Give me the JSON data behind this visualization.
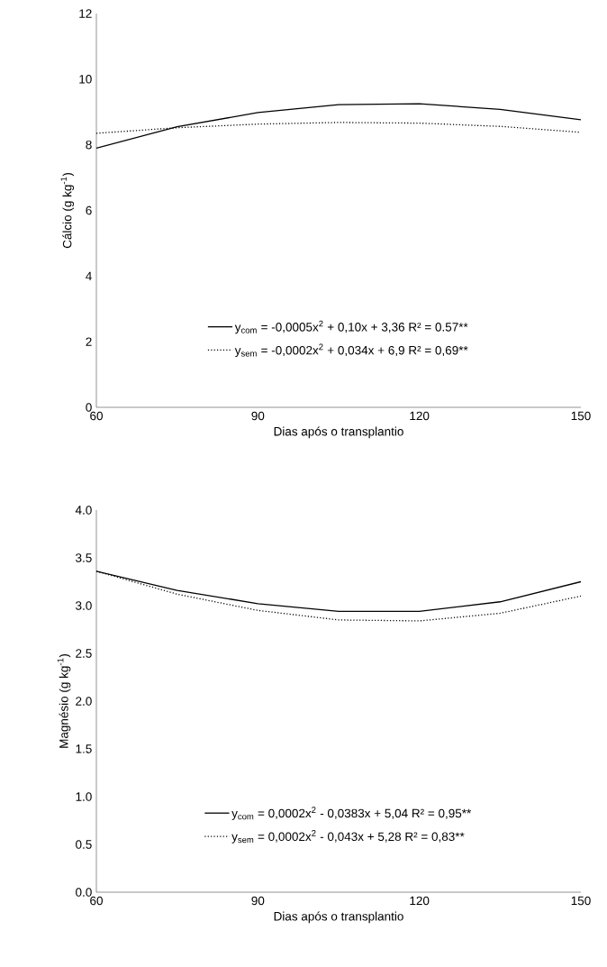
{
  "chart_data": [
    {
      "type": "line",
      "xlabel": "Dias após o transplantio",
      "ylabel": "Cálcio (g kg$^{-1}$)",
      "x": [
        60,
        75,
        90,
        105,
        120,
        135,
        150
      ],
      "xlim": [
        60,
        150
      ],
      "xticks": [
        60,
        90,
        120,
        150
      ],
      "ylim": [
        0,
        12
      ],
      "yticks": [
        0,
        2,
        4,
        6,
        8,
        10,
        12
      ],
      "grid": false,
      "legend": "bottom",
      "marker": "none",
      "series": [
        {
          "name": "y$_{com}$ = -0,0005x$^{2}$ + 0,10x + 3,36 R² = 0.57**",
          "color": "#000000",
          "line_style": "solid",
          "values": [
            7.9,
            8.55,
            8.98,
            9.22,
            9.25,
            9.08,
            8.76
          ]
        },
        {
          "name": "y$_{sem}$ = -0,0002x$^{2}$ + 0,034x + 6,9 R² = 0,69**",
          "color": "#000000",
          "line_style": "dotted",
          "values": [
            8.35,
            8.52,
            8.63,
            8.68,
            8.66,
            8.56,
            8.38
          ]
        }
      ]
    },
    {
      "type": "line",
      "xlabel": "Dias após o transplantio",
      "ylabel": "Magnésio (g kg$^{-1}$)",
      "x": [
        60,
        75,
        90,
        105,
        120,
        135,
        150
      ],
      "xlim": [
        60,
        150
      ],
      "xticks": [
        60,
        90,
        120,
        150
      ],
      "ylim": [
        0,
        4
      ],
      "yticks": [
        {
          "value": 0,
          "label": "0.0"
        },
        {
          "value": 0.5,
          "label": "0.5"
        },
        {
          "value": 1,
          "label": "1.0"
        },
        {
          "value": 1.5,
          "label": "1.5"
        },
        {
          "value": 2,
          "label": "2.0"
        },
        {
          "value": 2.5,
          "label": "2.5"
        },
        {
          "value": 3,
          "label": "3.0"
        },
        {
          "value": 3.5,
          "label": "3.5"
        },
        {
          "value": 4,
          "label": "4.0"
        }
      ],
      "grid": false,
      "legend": "bottom",
      "marker": "none",
      "series": [
        {
          "name": "y$_{com}$ = 0,0002x$^{2}$ - 0,0383x + 5,04 R² = 0,95**",
          "color": "#000000",
          "line_style": "solid",
          "values": [
            3.36,
            3.16,
            3.02,
            2.94,
            2.94,
            3.04,
            3.25
          ]
        },
        {
          "name": "y$_{sem}$ = 0,0002x$^{2}$ - 0,043x + 5,28 R² = 0,83**",
          "color": "#000000",
          "line_style": "dotted",
          "values": [
            3.36,
            3.12,
            2.95,
            2.85,
            2.84,
            2.92,
            3.1
          ]
        }
      ]
    }
  ]
}
